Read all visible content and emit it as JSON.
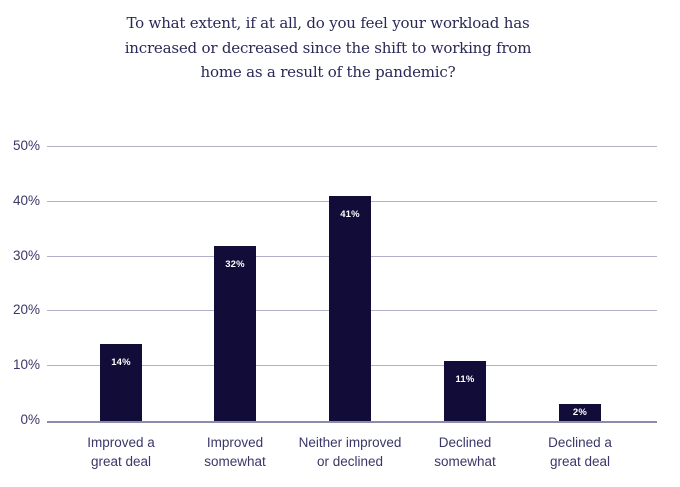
{
  "chart_data": {
    "type": "bar",
    "title": "To what extent, if at all, do you feel your workload has increased or decreased since the shift to working from home as a result of the pandemic?",
    "title_lines": [
      "To what extent, if at all, do you feel your workload has",
      "increased or decreased since the shift to working from",
      "home as a result of the pandemic?"
    ],
    "categories": [
      "Improved a great deal",
      "Improved somewhat",
      "Neither improved or declined",
      "Declined somewhat",
      "Declined a great deal"
    ],
    "category_label_lines": [
      [
        "Improved a",
        "great deal"
      ],
      [
        "Improved",
        "somewhat"
      ],
      [
        "Neither improved",
        "or declined"
      ],
      [
        "Declined",
        "somewhat"
      ],
      [
        "Declined a",
        "great deal"
      ]
    ],
    "values": [
      14,
      32,
      41,
      11,
      2
    ],
    "value_labels": [
      "14%",
      "32%",
      "41%",
      "11%",
      "2%"
    ],
    "xlabel": "",
    "ylabel": "",
    "ylim": [
      0,
      50
    ],
    "yticks": [
      0,
      10,
      20,
      30,
      40,
      50
    ],
    "ytick_labels": [
      "0%",
      "10%",
      "20%",
      "30%",
      "40%",
      "50%"
    ],
    "grid": "horizontal",
    "legend": "none",
    "colors": {
      "background": "#ffffff",
      "bar": "#120c38",
      "title_text": "#2a2857",
      "axis_text": "#3a3768",
      "gridline": "#b2b1c9",
      "baseline": "#8c8bad",
      "value_label_text": "#ffffff"
    }
  }
}
